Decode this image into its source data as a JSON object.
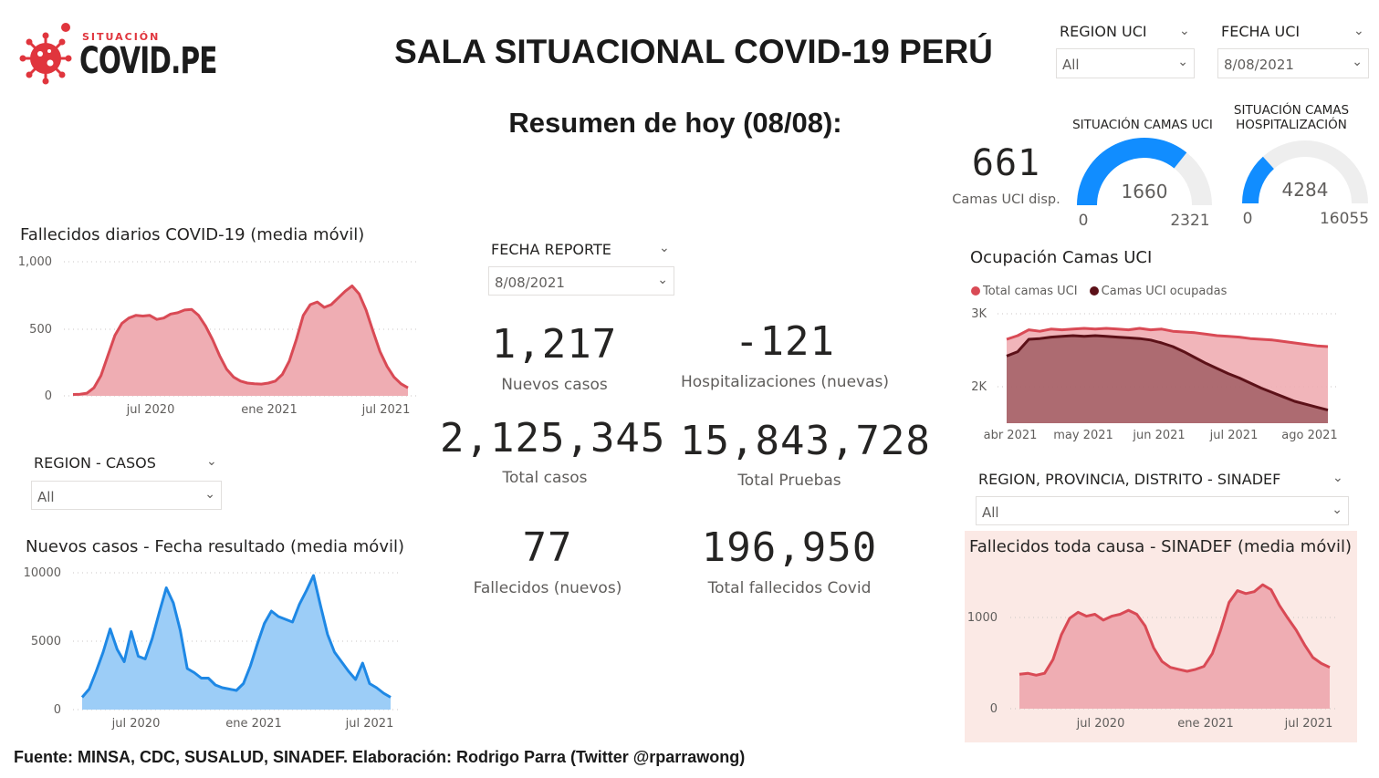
{
  "logo": {
    "small": "SITUACIÓN",
    "big": "COVID.PE"
  },
  "header": {
    "title": "SALA SITUACIONAL COVID-19 PERÚ",
    "subtitle": "Resumen de hoy (08/08):"
  },
  "filters": {
    "region_uci": {
      "label": "REGION UCI",
      "value": "All"
    },
    "fecha_uci": {
      "label": "FECHA UCI",
      "value": "8/08/2021"
    },
    "fecha_reporte": {
      "label": "FECHA REPORTE",
      "value": "8/08/2021"
    },
    "region_casos": {
      "label": "REGION - CASOS",
      "value": "All"
    },
    "region_sinadef": {
      "label": "REGION, PROVINCIA, DISTRITO - SINADEF",
      "value": "All"
    }
  },
  "kpis": {
    "nuevos_casos": {
      "value": "1,217",
      "label": "Nuevos casos"
    },
    "hosp_nuevas": {
      "value": "-121",
      "label": "Hospitalizaciones (nuevas)"
    },
    "total_casos": {
      "value": "2,125,345",
      "label": "Total casos"
    },
    "total_pruebas": {
      "value": "15,843,728",
      "label": "Total Pruebas"
    },
    "fallecidos_nuevos": {
      "value": "77",
      "label": "Fallecidos (nuevos)"
    },
    "total_fallecidos": {
      "value": "196,950",
      "label": "Total fallecidos Covid"
    }
  },
  "camas_uci": {
    "value": "661",
    "label": "Camas UCI disp."
  },
  "gauges": {
    "uci": {
      "title_l1": "SITUACIÓN CAMAS UCI",
      "title_l2": "",
      "value": 1660,
      "value_text": "1660",
      "min_text": "0",
      "max_text": "2321",
      "max": 2321
    },
    "hosp": {
      "title_l1": "SITUACIÓN CAMAS",
      "title_l2": "HOSPITALIZACIÓN",
      "value": 4284,
      "value_text": "4284",
      "min_text": "0",
      "max_text": "16055",
      "max": 16055
    }
  },
  "colors": {
    "red": "#d94a55",
    "red_fill": "#efadb3",
    "blue": "#1e88e5",
    "blue_fill": "#9ccdf7",
    "dark_red": "#5c1118",
    "gauge_blue": "#118dff",
    "gauge_bg": "#eeeeee",
    "sinadef_bg": "#fbe9e5"
  },
  "chart_data": [
    {
      "id": "fallecidos",
      "type": "area",
      "title": "Fallecidos diarios COVID-19 (media móvil)",
      "ylim": [
        0,
        1000
      ],
      "yticks": [
        "1,000",
        "500",
        "0"
      ],
      "xticks": [
        "jul 2020",
        "ene 2021",
        "jul 2021"
      ],
      "values": [
        10,
        12,
        20,
        60,
        150,
        300,
        450,
        540,
        580,
        600,
        595,
        600,
        570,
        580,
        610,
        620,
        640,
        645,
        600,
        520,
        420,
        300,
        200,
        140,
        110,
        95,
        90,
        88,
        95,
        110,
        160,
        260,
        420,
        600,
        680,
        700,
        660,
        680,
        730,
        780,
        820,
        760,
        640,
        480,
        330,
        220,
        140,
        90,
        60
      ]
    },
    {
      "id": "nuevos_casos",
      "type": "area",
      "title": "Nuevos casos - Fecha resultado (media móvil)",
      "ylim": [
        0,
        10000
      ],
      "yticks": [
        "10000",
        "5000",
        "0"
      ],
      "xticks": [
        "jul 2020",
        "ene 2021",
        "jul 2021"
      ],
      "values": [
        900,
        1500,
        2800,
        4200,
        5900,
        4400,
        3500,
        5700,
        3900,
        3700,
        5200,
        7100,
        8900,
        7800,
        5800,
        3000,
        2700,
        2300,
        2300,
        1800,
        1600,
        1500,
        1400,
        1900,
        3200,
        4800,
        6300,
        7200,
        6800,
        6600,
        6400,
        7700,
        8700,
        9800,
        7600,
        5500,
        4200,
        3500,
        2800,
        2200,
        3400,
        1900,
        1600,
        1200,
        900
      ]
    },
    {
      "id": "ocupacion_uci",
      "type": "area",
      "title": "Ocupación Camas UCI",
      "ylim": [
        1500,
        3000
      ],
      "yticks": [
        "3K",
        "2K"
      ],
      "xticks": [
        "abr 2021",
        "may 2021",
        "jun 2021",
        "jul 2021",
        "ago 2021"
      ],
      "series": [
        {
          "name": "Total camas UCI",
          "values": [
            2650,
            2700,
            2780,
            2760,
            2790,
            2780,
            2790,
            2800,
            2790,
            2800,
            2790,
            2780,
            2800,
            2780,
            2790,
            2760,
            2750,
            2740,
            2720,
            2700,
            2690,
            2680,
            2660,
            2650,
            2640,
            2620,
            2600,
            2580,
            2560,
            2550
          ]
        },
        {
          "name": "Camas UCI ocupadas",
          "values": [
            2420,
            2480,
            2650,
            2660,
            2680,
            2690,
            2700,
            2690,
            2700,
            2690,
            2680,
            2670,
            2660,
            2640,
            2600,
            2550,
            2480,
            2400,
            2320,
            2250,
            2180,
            2120,
            2050,
            1980,
            1920,
            1860,
            1800,
            1760,
            1720,
            1680
          ]
        }
      ]
    },
    {
      "id": "sinadef",
      "type": "area",
      "title": "Fallecidos toda causa - SINADEF (media móvil)",
      "ylim": [
        0,
        1400
      ],
      "yticks": [
        "1000",
        "0"
      ],
      "xticks": [
        "jul 2020",
        "ene 2021",
        "jul 2021"
      ],
      "values": [
        350,
        360,
        340,
        360,
        500,
        750,
        920,
        980,
        940,
        960,
        900,
        940,
        960,
        1000,
        960,
        840,
        620,
        480,
        420,
        400,
        380,
        400,
        430,
        560,
        800,
        1080,
        1200,
        1170,
        1190,
        1260,
        1210,
        1050,
        920,
        800,
        650,
        520,
        460,
        420
      ]
    }
  ]
}
